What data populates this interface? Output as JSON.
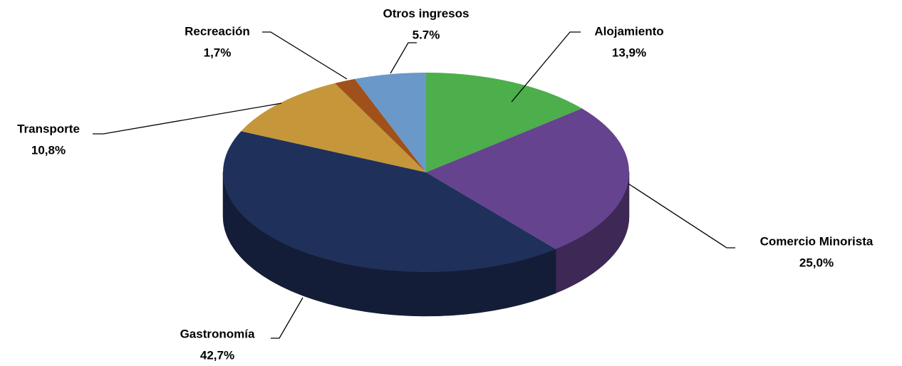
{
  "chart_data": {
    "type": "pie3d",
    "categories": [
      "Alojamiento",
      "Comercio Minorista",
      "Gastronomía",
      "Transporte",
      "Recreación",
      "Otros ingresos"
    ],
    "values": [
      13.9,
      25.0,
      42.7,
      10.8,
      1.7,
      5.7
    ],
    "value_labels": [
      "13,9%",
      "25,0%",
      "42,7%",
      "10,8%",
      "1,7%",
      "5.7%"
    ],
    "colors": [
      "#4dae4c",
      "#65438f",
      "#1f305b",
      "#c5973a",
      "#a0511b",
      "#6a98c9"
    ]
  }
}
